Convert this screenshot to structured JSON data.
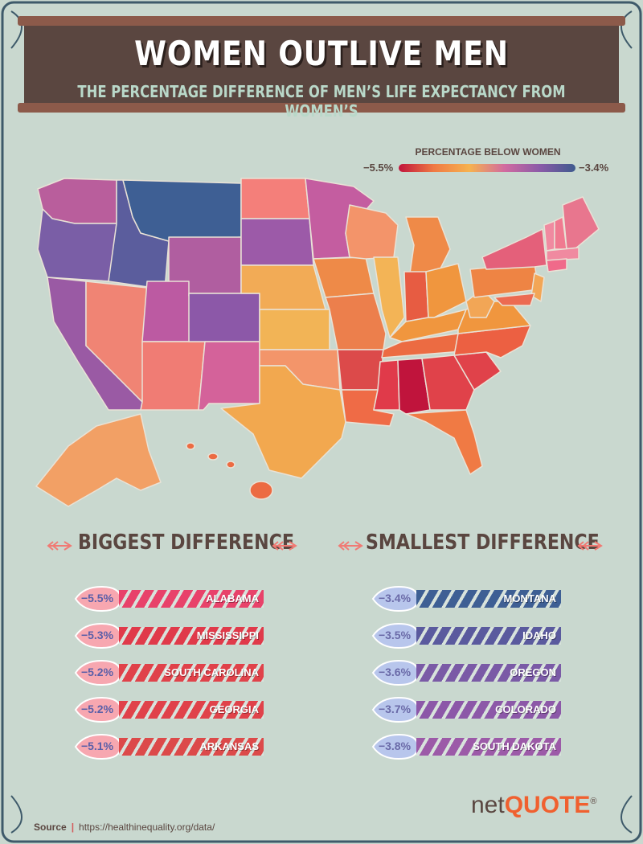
{
  "header": {
    "title": "WOMEN OUTLIVE MEN",
    "subtitle": "THE PERCENTAGE DIFFERENCE OF MEN’S LIFE EXPECTANCY FROM WOMEN’S"
  },
  "legend": {
    "title": "PERCENTAGE BELOW WOMEN",
    "min_label": "−5.5%",
    "max_label": "−3.4%",
    "colors": [
      "#c0143c",
      "#f07a44",
      "#f6b24f",
      "#d16aa0",
      "#8a5aa8",
      "#3e5a8e"
    ]
  },
  "biggest": {
    "heading": "BIGGEST DIFFERENCE",
    "items": [
      {
        "value": "−5.5%",
        "state": "ALABAMA",
        "color": "#e8426a"
      },
      {
        "value": "−5.3%",
        "state": "MISSISSIPPI",
        "color": "#e03a4a"
      },
      {
        "value": "−5.2%",
        "state": "SOUTH CAROLINA",
        "color": "#e0424a"
      },
      {
        "value": "−5.2%",
        "state": "GEORGIA",
        "color": "#e0424a"
      },
      {
        "value": "−5.1%",
        "state": "ARKANSAS",
        "color": "#dc4a4a"
      }
    ]
  },
  "smallest": {
    "heading": "SMALLEST DIFFERENCE",
    "items": [
      {
        "value": "−3.4%",
        "state": "MONTANA",
        "color": "#3e5f94"
      },
      {
        "value": "−3.5%",
        "state": "IDAHO",
        "color": "#5a5a9e"
      },
      {
        "value": "−3.6%",
        "state": "OREGON",
        "color": "#7a5aa6"
      },
      {
        "value": "−3.7%",
        "state": "COLORADO",
        "color": "#8c58a8"
      },
      {
        "value": "−3.8%",
        "state": "SOUTH DAKOTA",
        "color": "#9c5aa8"
      }
    ]
  },
  "source": {
    "label": "Source",
    "url": "https://healthinequality.org/data/"
  },
  "logo": {
    "prefix": "net",
    "brand": "QUOTE",
    "mark": "®"
  }
}
